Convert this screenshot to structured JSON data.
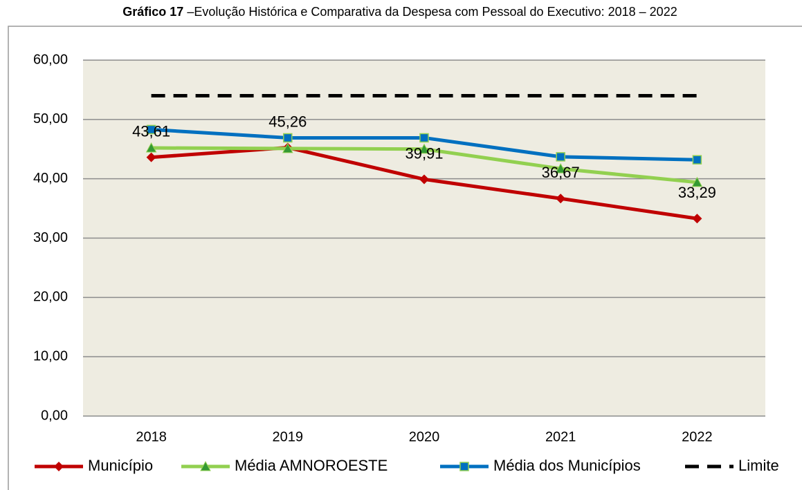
{
  "chart_data": {
    "type": "line",
    "title_label": "Gráfico 17",
    "title": "–Evolução Histórica e Comparativa da Despesa com Pessoal do Executivo: 2018 – 2022",
    "categories": [
      "2018",
      "2019",
      "2020",
      "2021",
      "2022"
    ],
    "series": [
      {
        "name": "Município",
        "color": "#c00000",
        "marker": "diamond",
        "values": [
          43.61,
          45.26,
          39.91,
          36.67,
          33.29
        ],
        "value_labels": [
          "43,61",
          "45,26",
          "39,91",
          "36,67",
          "33,29"
        ]
      },
      {
        "name": "Média AMNOROESTE",
        "color": "#92d050",
        "marker": "triangle",
        "values": [
          45.2,
          45.1,
          45.0,
          41.7,
          39.4
        ]
      },
      {
        "name": "Média dos Municípios",
        "color": "#0070c0",
        "marker": "square",
        "values": [
          48.3,
          46.9,
          46.9,
          43.7,
          43.2
        ]
      },
      {
        "name": "Limite",
        "color": "#000000",
        "dash": true,
        "values": [
          54,
          54,
          54,
          54,
          54
        ]
      }
    ],
    "ylim": [
      0,
      60
    ],
    "yticks": [
      {
        "value": 0,
        "label": "0,00"
      },
      {
        "value": 10,
        "label": "10,00"
      },
      {
        "value": 20,
        "label": "20,00"
      },
      {
        "value": 30,
        "label": "30,00"
      },
      {
        "value": 40,
        "label": "40,00"
      },
      {
        "value": 50,
        "label": "50,00"
      },
      {
        "value": 60,
        "label": "60,00"
      }
    ],
    "grid": true
  }
}
